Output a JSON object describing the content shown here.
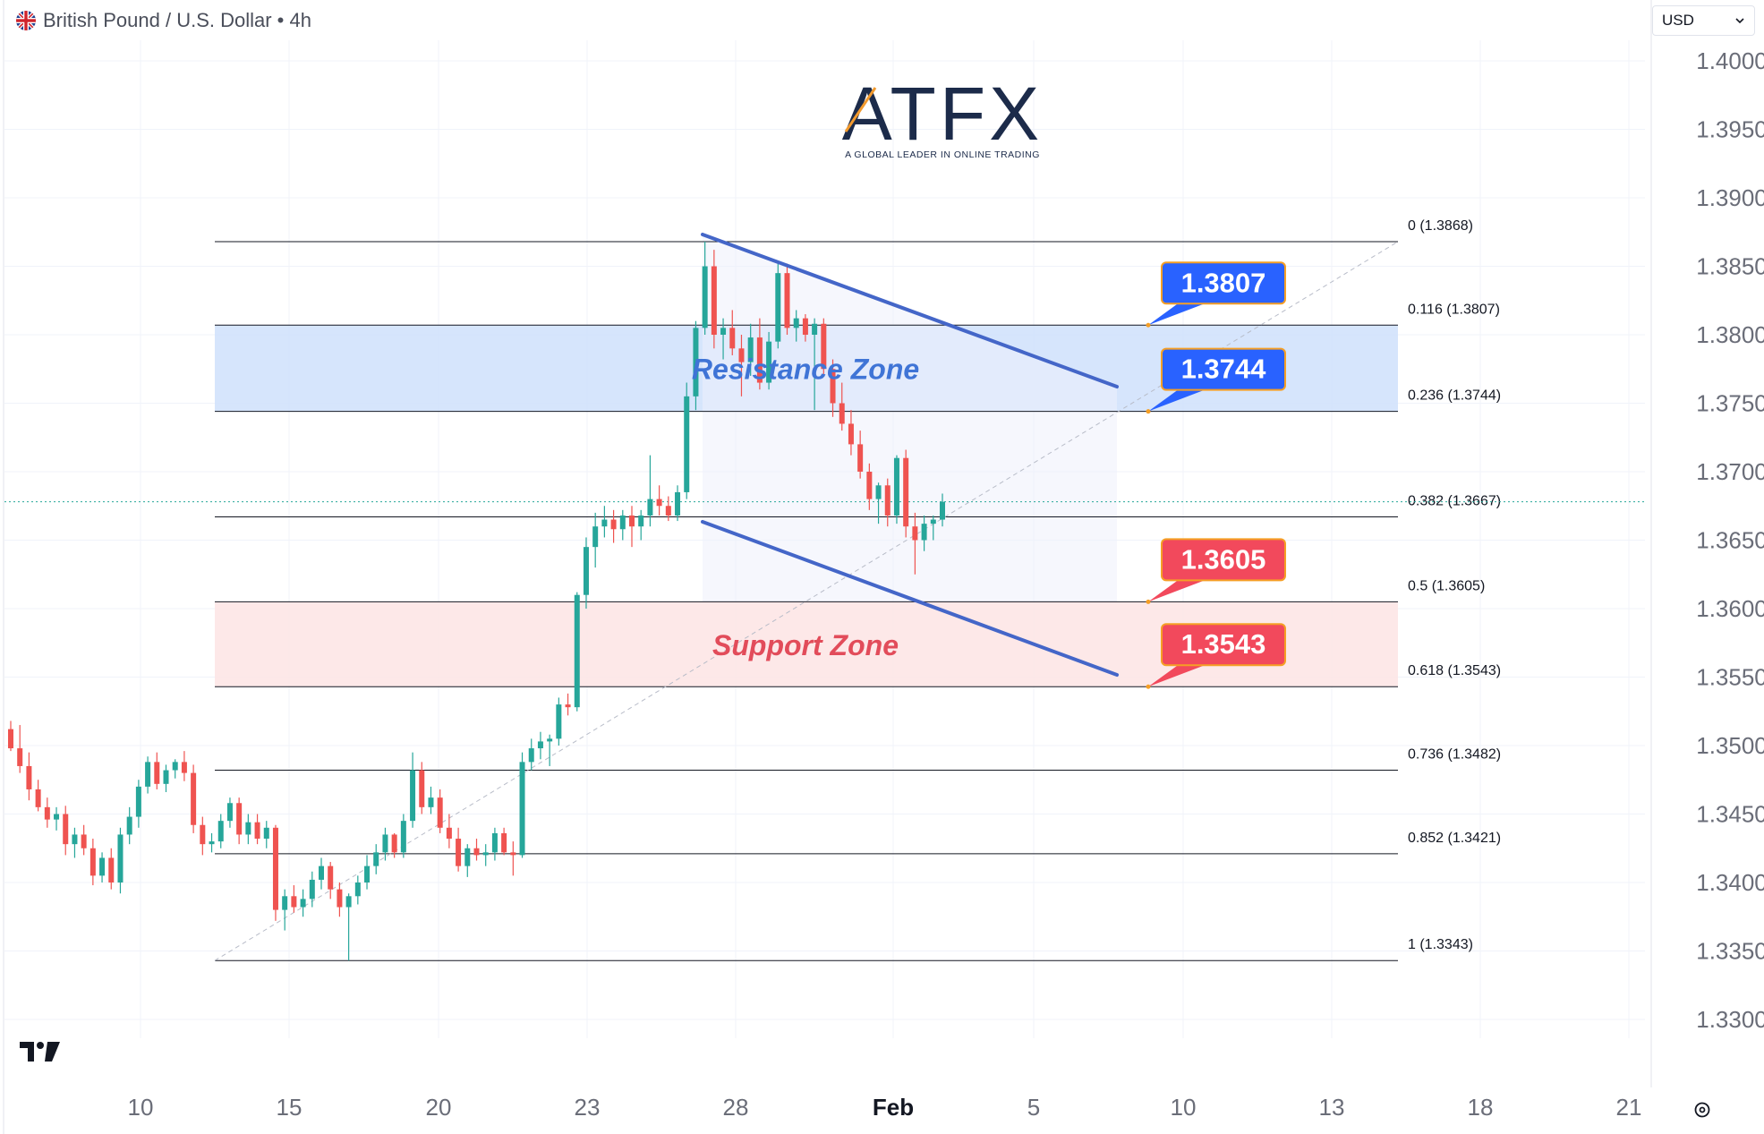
{
  "header": {
    "symbol": "British Pound / U.S. Dollar",
    "interval": "4h"
  },
  "currency_select": {
    "value": "USD"
  },
  "logo": {
    "brand": "ATFX",
    "tagline": "A GLOBAL LEADER IN ONLINE TRADING"
  },
  "icons": {
    "flag": "uk-flag-icon",
    "chevron": "chevron-down-icon",
    "tv": "tradingview-logo-icon",
    "settings": "settings-icon"
  },
  "colors": {
    "bull": "#26a69a",
    "bear": "#ef5350",
    "resistance_fill": "#cfe0fb",
    "support_fill": "#fde4e4",
    "channel": "#4466c8",
    "blue_label": "#2962ff",
    "red_label": "#f2495c"
  },
  "chart_data": {
    "type": "candlestick",
    "ylim": [
      1.327,
      1.403
    ],
    "y_ticks": [
      "1.4000",
      "1.3950",
      "1.3900",
      "1.3850",
      "1.3800",
      "1.3750",
      "1.3700",
      "1.3650",
      "1.3600",
      "1.3550",
      "1.3500",
      "1.3450",
      "1.3400",
      "1.3350",
      "1.3300"
    ],
    "x_ticks": [
      "10",
      "15",
      "20",
      "23",
      "28",
      "Feb",
      "5",
      "10",
      "13",
      "18",
      "21"
    ],
    "fibonacci": [
      {
        "level": "0",
        "price": 1.3868,
        "label": "0 (1.3868)"
      },
      {
        "level": "0.116",
        "price": 1.3807,
        "label": "0.116 (1.3807)"
      },
      {
        "level": "0.236",
        "price": 1.3744,
        "label": "0.236 (1.3744)"
      },
      {
        "level": "0.382",
        "price": 1.3667,
        "label": "0.382 (1.3667)"
      },
      {
        "level": "0.5",
        "price": 1.3605,
        "label": "0.5 (1.3605)"
      },
      {
        "level": "0.618",
        "price": 1.3543,
        "label": "0.618 (1.3543)"
      },
      {
        "level": "0.736",
        "price": 1.3482,
        "label": "0.736 (1.3482)"
      },
      {
        "level": "0.852",
        "price": 1.3421,
        "label": "0.852 (1.3421)"
      },
      {
        "level": "1",
        "price": 1.3343,
        "label": "1 (1.3343)"
      }
    ],
    "zones": [
      {
        "name": "Resistance Zone",
        "from": 1.3744,
        "to": 1.3807
      },
      {
        "name": "Support Zone",
        "from": 1.3543,
        "to": 1.3605
      }
    ],
    "callouts": [
      {
        "value": "1.3807",
        "color": "blue"
      },
      {
        "value": "1.3744",
        "color": "blue"
      },
      {
        "value": "1.3605",
        "color": "red"
      },
      {
        "value": "1.3543",
        "color": "red"
      }
    ],
    "current_price": 1.3678,
    "candles": [
      [
        1.3512,
        1.3518,
        1.3496,
        1.3498
      ],
      [
        1.3498,
        1.3515,
        1.348,
        1.3485
      ],
      [
        1.3485,
        1.3495,
        1.346,
        1.3468
      ],
      [
        1.3468,
        1.3475,
        1.3452,
        1.3455
      ],
      [
        1.3455,
        1.3462,
        1.344,
        1.3446
      ],
      [
        1.3446,
        1.3455,
        1.3438,
        1.345
      ],
      [
        1.345,
        1.3456,
        1.342,
        1.3428
      ],
      [
        1.3428,
        1.344,
        1.3418,
        1.3435
      ],
      [
        1.3435,
        1.3442,
        1.342,
        1.3425
      ],
      [
        1.3425,
        1.3432,
        1.3398,
        1.3405
      ],
      [
        1.3405,
        1.3422,
        1.34,
        1.3418
      ],
      [
        1.3418,
        1.3425,
        1.3395,
        1.34
      ],
      [
        1.34,
        1.344,
        1.3392,
        1.3435
      ],
      [
        1.3435,
        1.3455,
        1.3428,
        1.3448
      ],
      [
        1.3448,
        1.3475,
        1.344,
        1.347
      ],
      [
        1.347,
        1.3492,
        1.3465,
        1.3488
      ],
      [
        1.3488,
        1.3495,
        1.3468,
        1.3472
      ],
      [
        1.3472,
        1.3486,
        1.3466,
        1.3482
      ],
      [
        1.3482,
        1.349,
        1.3476,
        1.3488
      ],
      [
        1.3488,
        1.3496,
        1.3474,
        1.348
      ],
      [
        1.348,
        1.3486,
        1.3436,
        1.3442
      ],
      [
        1.3442,
        1.3448,
        1.342,
        1.3428
      ],
      [
        1.3428,
        1.3436,
        1.3422,
        1.343
      ],
      [
        1.343,
        1.345,
        1.3425,
        1.3445
      ],
      [
        1.3445,
        1.3462,
        1.344,
        1.3458
      ],
      [
        1.3458,
        1.3462,
        1.3428,
        1.3435
      ],
      [
        1.3435,
        1.345,
        1.3428,
        1.3444
      ],
      [
        1.3444,
        1.345,
        1.3428,
        1.3432
      ],
      [
        1.3432,
        1.3445,
        1.3425,
        1.344
      ],
      [
        1.344,
        1.3442,
        1.3372,
        1.338
      ],
      [
        1.338,
        1.3395,
        1.3365,
        1.339
      ],
      [
        1.339,
        1.3398,
        1.3378,
        1.3382
      ],
      [
        1.3382,
        1.3395,
        1.3375,
        1.3388
      ],
      [
        1.3388,
        1.3408,
        1.3382,
        1.3402
      ],
      [
        1.3402,
        1.3418,
        1.3395,
        1.3412
      ],
      [
        1.3412,
        1.3415,
        1.3388,
        1.3395
      ],
      [
        1.3395,
        1.34,
        1.3375,
        1.3382
      ],
      [
        1.3382,
        1.3392,
        1.3343,
        1.339
      ],
      [
        1.339,
        1.3405,
        1.3384,
        1.34
      ],
      [
        1.34,
        1.342,
        1.3395,
        1.3412
      ],
      [
        1.3412,
        1.3428,
        1.3406,
        1.3422
      ],
      [
        1.3422,
        1.344,
        1.3416,
        1.3435
      ],
      [
        1.3435,
        1.3436,
        1.3418,
        1.3422
      ],
      [
        1.3422,
        1.345,
        1.3418,
        1.3445
      ],
      [
        1.3445,
        1.3495,
        1.344,
        1.3482
      ],
      [
        1.3482,
        1.3488,
        1.345,
        1.3455
      ],
      [
        1.3455,
        1.347,
        1.345,
        1.3462
      ],
      [
        1.3462,
        1.3468,
        1.3436,
        1.344
      ],
      [
        1.344,
        1.345,
        1.3425,
        1.3432
      ],
      [
        1.3432,
        1.344,
        1.3408,
        1.3412
      ],
      [
        1.3412,
        1.3428,
        1.3404,
        1.3425
      ],
      [
        1.3425,
        1.3432,
        1.3416,
        1.342
      ],
      [
        1.342,
        1.3428,
        1.3412,
        1.3422
      ],
      [
        1.3422,
        1.344,
        1.3416,
        1.3436
      ],
      [
        1.3436,
        1.344,
        1.342,
        1.3422
      ],
      [
        1.3422,
        1.343,
        1.3405,
        1.342
      ],
      [
        1.342,
        1.3495,
        1.3418,
        1.3488
      ],
      [
        1.3488,
        1.3505,
        1.3482,
        1.3498
      ],
      [
        1.3498,
        1.351,
        1.349,
        1.3503
      ],
      [
        1.3503,
        1.3508,
        1.3485,
        1.3505
      ],
      [
        1.3505,
        1.3535,
        1.35,
        1.353
      ],
      [
        1.353,
        1.3538,
        1.3522,
        1.3528
      ],
      [
        1.3528,
        1.3612,
        1.3525,
        1.361
      ],
      [
        1.361,
        1.3652,
        1.36,
        1.3645
      ],
      [
        1.3645,
        1.367,
        1.363,
        1.366
      ],
      [
        1.366,
        1.3675,
        1.3652,
        1.3665
      ],
      [
        1.3665,
        1.3672,
        1.3648,
        1.3658
      ],
      [
        1.3658,
        1.3672,
        1.365,
        1.3668
      ],
      [
        1.3668,
        1.3675,
        1.3645,
        1.366
      ],
      [
        1.366,
        1.3672,
        1.365,
        1.3668
      ],
      [
        1.3668,
        1.3712,
        1.366,
        1.368
      ],
      [
        1.368,
        1.369,
        1.3668,
        1.3675
      ],
      [
        1.3675,
        1.3682,
        1.3664,
        1.3668
      ],
      [
        1.3668,
        1.369,
        1.3664,
        1.3685
      ],
      [
        1.3685,
        1.3765,
        1.368,
        1.3755
      ],
      [
        1.3755,
        1.381,
        1.3745,
        1.3805
      ],
      [
        1.3805,
        1.3868,
        1.38,
        1.385
      ],
      [
        1.385,
        1.3862,
        1.379,
        1.38
      ],
      [
        1.38,
        1.3812,
        1.3782,
        1.3805
      ],
      [
        1.3805,
        1.3818,
        1.3785,
        1.379
      ],
      [
        1.379,
        1.38,
        1.3755,
        1.378
      ],
      [
        1.378,
        1.3808,
        1.377,
        1.3798
      ],
      [
        1.3798,
        1.3812,
        1.376,
        1.3765
      ],
      [
        1.3765,
        1.3802,
        1.376,
        1.3795
      ],
      [
        1.3795,
        1.3852,
        1.379,
        1.3845
      ],
      [
        1.3845,
        1.3852,
        1.38,
        1.3805
      ],
      [
        1.3805,
        1.3818,
        1.3795,
        1.3812
      ],
      [
        1.3812,
        1.3815,
        1.3795,
        1.38
      ],
      [
        1.38,
        1.3812,
        1.3745,
        1.3808
      ],
      [
        1.3808,
        1.3812,
        1.377,
        1.3775
      ],
      [
        1.3775,
        1.3782,
        1.374,
        1.375
      ],
      [
        1.375,
        1.3765,
        1.373,
        1.3735
      ],
      [
        1.3735,
        1.3745,
        1.3712,
        1.372
      ],
      [
        1.372,
        1.373,
        1.3695,
        1.37
      ],
      [
        1.37,
        1.3706,
        1.3672,
        1.368
      ],
      [
        1.368,
        1.3692,
        1.3662,
        1.369
      ],
      [
        1.369,
        1.3695,
        1.366,
        1.3668
      ],
      [
        1.3668,
        1.3712,
        1.3662,
        1.371
      ],
      [
        1.371,
        1.3716,
        1.3652,
        1.366
      ],
      [
        1.366,
        1.367,
        1.3625,
        1.365
      ],
      [
        1.365,
        1.3668,
        1.3642,
        1.3662
      ],
      [
        1.3662,
        1.3668,
        1.365,
        1.3665
      ],
      [
        1.3665,
        1.3684,
        1.366,
        1.3678
      ]
    ]
  }
}
